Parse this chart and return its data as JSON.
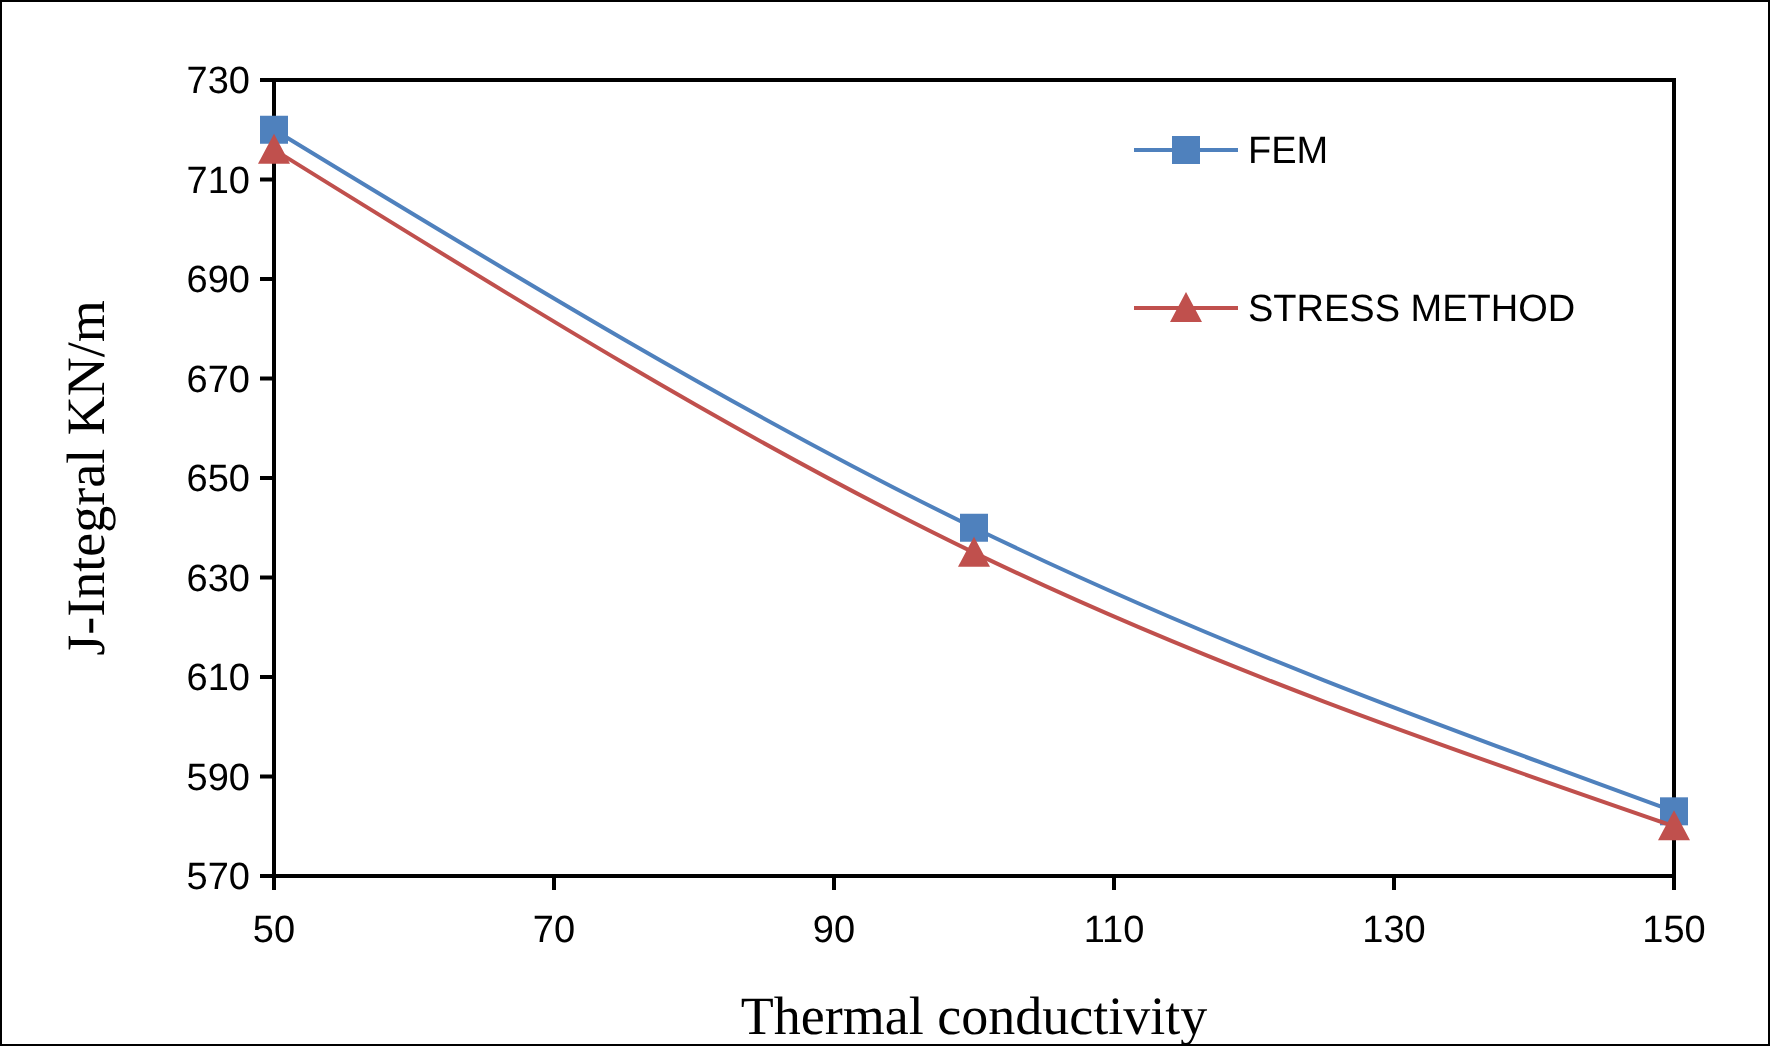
{
  "chart_data": {
    "type": "line",
    "xlabel": "Thermal conductivity",
    "ylabel": "J-Integral KN/m",
    "x": [
      50,
      100,
      150
    ],
    "series": [
      {
        "name": "FEM",
        "color": "#4f81bd",
        "marker": "square",
        "values": [
          720,
          640,
          583
        ]
      },
      {
        "name": "STRESS METHOD",
        "color": "#c0504d",
        "marker": "triangle",
        "values": [
          716,
          635,
          580
        ]
      }
    ],
    "xlim": [
      50,
      150
    ],
    "xticks": [
      50,
      70,
      90,
      110,
      130,
      150
    ],
    "ylim": [
      570,
      730
    ],
    "yticks": [
      570,
      590,
      610,
      630,
      650,
      670,
      690,
      710,
      730
    ],
    "grid": false,
    "legend": "top right",
    "line_style": "solid"
  }
}
